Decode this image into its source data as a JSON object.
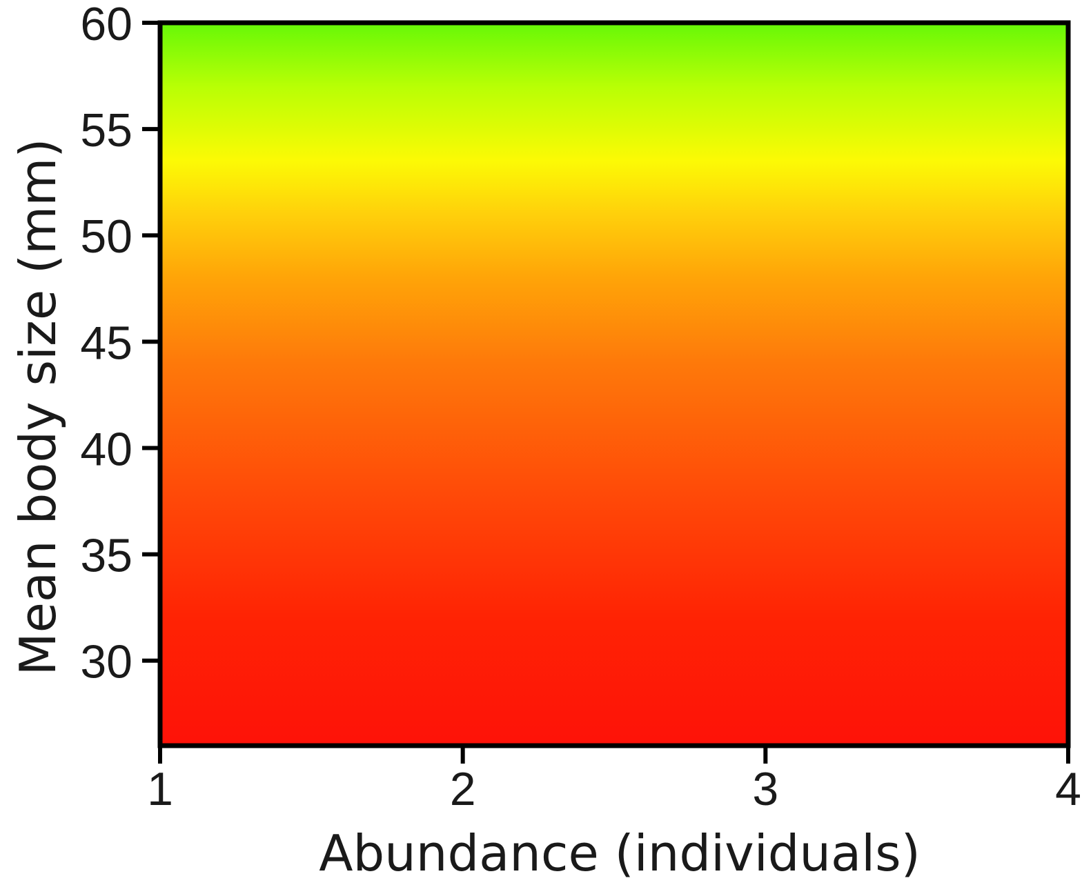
{
  "chart_data": {
    "type": "heatmap",
    "title": "",
    "xlabel": "Abundance (individuals)",
    "ylabel": "Mean body size (mm)",
    "xlim": [
      1,
      4
    ],
    "ylim": [
      26,
      60
    ],
    "xticks": [
      1,
      2,
      3,
      4
    ],
    "yticks": [
      30,
      35,
      40,
      45,
      50,
      55,
      60
    ],
    "grid": false,
    "legend": "none",
    "color_scale": {
      "description": "fill color varies with mean body size; nearly constant along abundance",
      "stops": [
        {
          "y": 26,
          "color": "#fe1208"
        },
        {
          "y": 32,
          "color": "#ff2304"
        },
        {
          "y": 38,
          "color": "#ff4b08"
        },
        {
          "y": 44,
          "color": "#fe790a"
        },
        {
          "y": 48,
          "color": "#ffa408"
        },
        {
          "y": 51,
          "color": "#ffd00b"
        },
        {
          "y": 53.5,
          "color": "#fcfa05"
        },
        {
          "y": 57,
          "color": "#b8ff05"
        },
        {
          "y": 60,
          "color": "#66f807"
        }
      ]
    },
    "axis_color": "#000000"
  }
}
